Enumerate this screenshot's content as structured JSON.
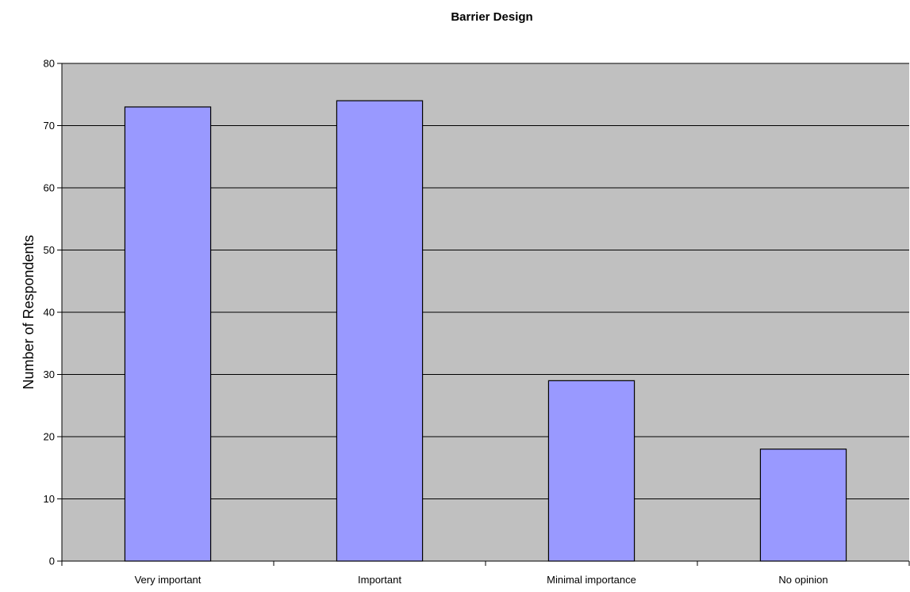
{
  "chart_data": {
    "type": "bar",
    "title": "Barrier Design",
    "xlabel": "",
    "ylabel": "Number of Respondents",
    "categories": [
      "Very important",
      "Important",
      "Minimal importance",
      "No opinion"
    ],
    "values": [
      73,
      74,
      29,
      18
    ],
    "ylim": [
      0,
      80
    ],
    "yticks": [
      0,
      10,
      20,
      30,
      40,
      50,
      60,
      70,
      80
    ],
    "grid": true,
    "legend": "none",
    "colors": {
      "plot_background": "#c0c0c0",
      "bar_fill": "#9999ff",
      "bar_stroke": "#000000",
      "gridline": "#000000"
    }
  }
}
